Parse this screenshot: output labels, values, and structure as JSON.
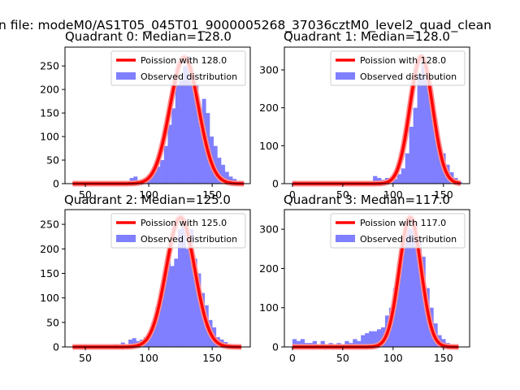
{
  "figure": {
    "suptitle": "n file: modeM0/AS1T05_045T01_9000005268_37036cztM0_level2_quad_clean"
  },
  "colors": {
    "bars": "#7f7fff",
    "curve": "#ff0000",
    "curve_glow": "#ff8c8c"
  },
  "chart_data": [
    {
      "type": "bar",
      "title": "Quadrant 0: Median=128.0",
      "xlim": [
        34,
        180
      ],
      "ylim": [
        0,
        290
      ],
      "xticks": [
        50,
        100,
        150
      ],
      "yticks": [
        0,
        50,
        100,
        150,
        200,
        250
      ],
      "legend": [
        "Poission with 128.0",
        "Observed distribution"
      ],
      "legend_loc": "upper right",
      "bin_width": 3,
      "bins": [
        [
          76,
          3
        ],
        [
          79,
          3
        ],
        [
          82,
          3
        ],
        [
          85,
          12
        ],
        [
          88,
          15
        ],
        [
          91,
          6
        ],
        [
          94,
          6
        ],
        [
          97,
          9
        ],
        [
          100,
          15
        ],
        [
          103,
          24
        ],
        [
          106,
          36
        ],
        [
          109,
          50
        ],
        [
          112,
          80
        ],
        [
          115,
          125
        ],
        [
          118,
          160
        ],
        [
          121,
          210
        ],
        [
          124,
          220
        ],
        [
          127,
          250
        ],
        [
          130,
          270
        ],
        [
          133,
          230
        ],
        [
          136,
          210
        ],
        [
          139,
          130
        ],
        [
          142,
          180
        ],
        [
          145,
          150
        ],
        [
          148,
          100
        ],
        [
          151,
          80
        ],
        [
          154,
          55
        ],
        [
          157,
          40
        ],
        [
          160,
          25
        ],
        [
          163,
          15
        ],
        [
          166,
          10
        ],
        [
          169,
          6
        ],
        [
          172,
          3
        ]
      ],
      "curve": {
        "mean": 128,
        "peak": 268,
        "sigma": 11.3,
        "x_range": [
          40,
          175
        ]
      }
    },
    {
      "type": "bar",
      "title": "Quadrant 1: Median=128.0",
      "xlim": [
        -8,
        176
      ],
      "ylim": [
        0,
        360
      ],
      "xticks": [
        0,
        50,
        100,
        150
      ],
      "yticks": [
        0,
        100,
        200,
        300
      ],
      "legend": [
        "Poission with 128.0",
        "Observed distribution"
      ],
      "legend_loc": "upper right",
      "bin_width": 4,
      "bins": [
        [
          72,
          5
        ],
        [
          76,
          5
        ],
        [
          80,
          20
        ],
        [
          84,
          15
        ],
        [
          88,
          10
        ],
        [
          92,
          15
        ],
        [
          96,
          8
        ],
        [
          100,
          12
        ],
        [
          104,
          25
        ],
        [
          108,
          40
        ],
        [
          112,
          80
        ],
        [
          116,
          150
        ],
        [
          120,
          200
        ],
        [
          124,
          290
        ],
        [
          128,
          330
        ],
        [
          132,
          300
        ],
        [
          136,
          230
        ],
        [
          140,
          170
        ],
        [
          144,
          100
        ],
        [
          148,
          80
        ],
        [
          152,
          50
        ],
        [
          156,
          30
        ],
        [
          160,
          15
        ],
        [
          164,
          5
        ]
      ],
      "curve": {
        "mean": 128,
        "peak": 335,
        "sigma": 11.3,
        "x_range": [
          0,
          167
        ]
      }
    },
    {
      "type": "bar",
      "title": "Quadrant 2: Median=125.0",
      "xlim": [
        34,
        180
      ],
      "ylim": [
        0,
        280
      ],
      "xticks": [
        50,
        100,
        150
      ],
      "yticks": [
        0,
        50,
        100,
        150,
        200,
        250
      ],
      "legend": [
        "Poission with 125.0",
        "Observed distribution"
      ],
      "legend_loc": "upper right",
      "bin_width": 3,
      "bins": [
        [
          66,
          3
        ],
        [
          72,
          6
        ],
        [
          78,
          9
        ],
        [
          81,
          3
        ],
        [
          84,
          15
        ],
        [
          87,
          18
        ],
        [
          90,
          12
        ],
        [
          93,
          15
        ],
        [
          96,
          20
        ],
        [
          99,
          30
        ],
        [
          102,
          50
        ],
        [
          105,
          80
        ],
        [
          108,
          110
        ],
        [
          111,
          150
        ],
        [
          114,
          190
        ],
        [
          117,
          165
        ],
        [
          120,
          180
        ],
        [
          123,
          240
        ],
        [
          126,
          250
        ],
        [
          129,
          200
        ],
        [
          132,
          240
        ],
        [
          135,
          180
        ],
        [
          138,
          150
        ],
        [
          141,
          110
        ],
        [
          144,
          85
        ],
        [
          147,
          55
        ],
        [
          150,
          40
        ],
        [
          153,
          20
        ],
        [
          156,
          15
        ],
        [
          159,
          10
        ],
        [
          162,
          6
        ],
        [
          165,
          3
        ]
      ],
      "curve": {
        "mean": 125,
        "peak": 264,
        "sigma": 11.2,
        "x_range": [
          40,
          173
        ]
      }
    },
    {
      "type": "bar",
      "title": "Quadrant 3: Median=117.0",
      "xlim": [
        -8,
        176
      ],
      "ylim": [
        0,
        350
      ],
      "xticks": [
        0,
        50,
        100,
        150
      ],
      "yticks": [
        0,
        100,
        200,
        300
      ],
      "legend": [
        "Poission with 117.0",
        "Observed distribution"
      ],
      "legend_loc": "upper right",
      "bin_width": 4,
      "bins": [
        [
          0,
          20
        ],
        [
          4,
          15
        ],
        [
          8,
          20
        ],
        [
          12,
          10
        ],
        [
          16,
          10
        ],
        [
          20,
          15
        ],
        [
          24,
          5
        ],
        [
          28,
          15
        ],
        [
          32,
          5
        ],
        [
          36,
          10
        ],
        [
          40,
          5
        ],
        [
          44,
          10
        ],
        [
          48,
          5
        ],
        [
          52,
          15
        ],
        [
          56,
          10
        ],
        [
          60,
          20
        ],
        [
          64,
          15
        ],
        [
          68,
          30
        ],
        [
          72,
          35
        ],
        [
          76,
          40
        ],
        [
          80,
          40
        ],
        [
          84,
          45
        ],
        [
          88,
          50
        ],
        [
          92,
          80
        ],
        [
          96,
          100
        ],
        [
          100,
          150
        ],
        [
          104,
          200
        ],
        [
          108,
          250
        ],
        [
          112,
          310
        ],
        [
          116,
          300
        ],
        [
          120,
          310
        ],
        [
          124,
          280
        ],
        [
          128,
          230
        ],
        [
          132,
          150
        ],
        [
          136,
          100
        ],
        [
          140,
          60
        ],
        [
          144,
          30
        ],
        [
          148,
          20
        ],
        [
          152,
          10
        ],
        [
          156,
          5
        ]
      ],
      "curve": {
        "mean": 117,
        "peak": 330,
        "sigma": 10.8,
        "x_range": [
          0,
          165
        ]
      }
    }
  ]
}
